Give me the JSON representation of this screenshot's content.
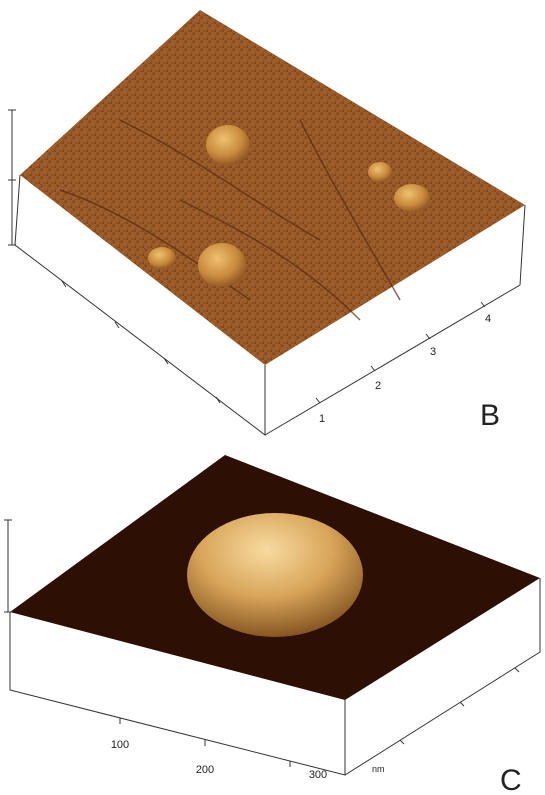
{
  "panels": [
    {
      "label": "B",
      "axis_labels": [
        "1",
        "2",
        "3",
        "4"
      ]
    },
    {
      "label": "C",
      "axis_labels": [
        "100",
        "200",
        "300"
      ],
      "unit": "nm"
    }
  ]
}
